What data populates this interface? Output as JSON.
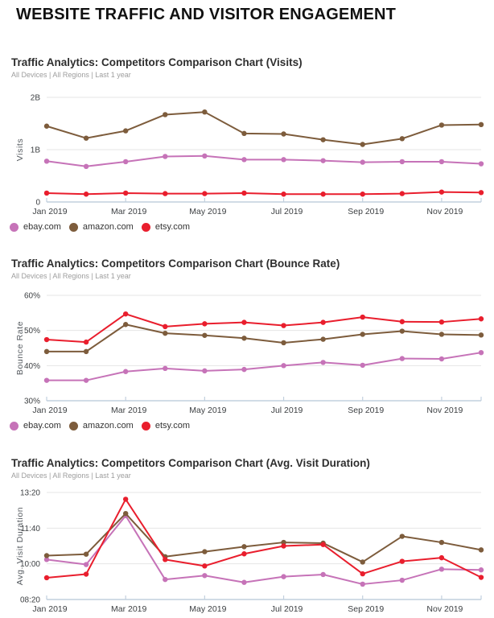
{
  "page_title": "WEBSITE TRAFFIC AND VISITOR ENGAGEMENT",
  "colors": {
    "ebay": "#C673B8",
    "amazon": "#7D5C3C",
    "etsy": "#E91E2D",
    "gridline": "#e4e4e4",
    "axis": "#c2d0de",
    "tick_label": "#3d4043",
    "axis_title": "#565b60"
  },
  "chart_data": [
    {
      "type": "line",
      "title": "Traffic Analytics: Competitors Comparison Chart (Visits)",
      "subtitle": "All Devices | All Regions | Last 1 year",
      "ylabel": "Visits",
      "ylim": [
        0,
        2
      ],
      "yticks": [
        {
          "value": 2,
          "label": "2B"
        },
        {
          "value": 1,
          "label": "1B"
        },
        {
          "value": 0,
          "label": "0"
        }
      ],
      "categories": [
        "Jan 2019",
        "Feb 2019",
        "Mar 2019",
        "Apr 2019",
        "May 2019",
        "Jun 2019",
        "Jul 2019",
        "Aug 2019",
        "Sep 2019",
        "Oct 2019",
        "Nov 2019",
        "Dec 2019"
      ],
      "xtick_indices": [
        0,
        2,
        4,
        6,
        8,
        10
      ],
      "xtick_labels": [
        "Jan 2019",
        "Mar 2019",
        "May 2019",
        "Jul 2019",
        "Sep 2019",
        "Nov 2019"
      ],
      "unit": "billions of visits",
      "grid": true,
      "legend_visible": true,
      "legend_position": "bottom-left",
      "series": [
        {
          "name": "ebay.com",
          "color": "#C673B8",
          "values": [
            0.78,
            0.68,
            0.77,
            0.87,
            0.88,
            0.81,
            0.81,
            0.79,
            0.76,
            0.77,
            0.77,
            0.73
          ]
        },
        {
          "name": "amazon.com",
          "color": "#7D5C3C",
          "values": [
            1.45,
            1.22,
            1.36,
            1.67,
            1.72,
            1.31,
            1.3,
            1.19,
            1.1,
            1.21,
            1.47,
            1.48
          ]
        },
        {
          "name": "etsy.com",
          "color": "#E91E2D",
          "values": [
            0.17,
            0.15,
            0.17,
            0.16,
            0.16,
            0.17,
            0.15,
            0.15,
            0.15,
            0.16,
            0.19,
            0.18
          ]
        }
      ]
    },
    {
      "type": "line",
      "title": "Traffic Analytics: Competitors Comparison Chart (Bounce Rate)",
      "subtitle": "All Devices | All Regions | Last 1 year",
      "ylabel": "Bounce Rate",
      "ylim": [
        30,
        60
      ],
      "yticks": [
        {
          "value": 60,
          "label": "60%"
        },
        {
          "value": 50,
          "label": "50%"
        },
        {
          "value": 40,
          "label": "40%"
        },
        {
          "value": 30,
          "label": "30%"
        }
      ],
      "categories": [
        "Jan 2019",
        "Feb 2019",
        "Mar 2019",
        "Apr 2019",
        "May 2019",
        "Jun 2019",
        "Jul 2019",
        "Aug 2019",
        "Sep 2019",
        "Oct 2019",
        "Nov 2019",
        "Dec 2019"
      ],
      "xtick_indices": [
        0,
        2,
        4,
        6,
        8,
        10
      ],
      "xtick_labels": [
        "Jan 2019",
        "Mar 2019",
        "May 2019",
        "Jul 2019",
        "Sep 2019",
        "Nov 2019"
      ],
      "unit": "percent",
      "grid": true,
      "legend_visible": true,
      "legend_position": "bottom-left",
      "series": [
        {
          "name": "ebay.com",
          "color": "#C673B8",
          "values": [
            35.8,
            35.8,
            38.3,
            39.2,
            38.5,
            38.9,
            40.0,
            40.9,
            40.1,
            42.0,
            41.9,
            43.7
          ]
        },
        {
          "name": "amazon.com",
          "color": "#7D5C3C",
          "values": [
            44.0,
            44.0,
            51.7,
            49.2,
            48.6,
            47.8,
            46.5,
            47.5,
            48.9,
            49.8,
            48.9,
            48.7
          ]
        },
        {
          "name": "etsy.com",
          "color": "#E91E2D",
          "values": [
            47.4,
            46.7,
            54.7,
            51.1,
            51.9,
            52.3,
            51.4,
            52.3,
            53.8,
            52.5,
            52.4,
            53.3
          ]
        }
      ]
    },
    {
      "type": "line",
      "title": "Traffic Analytics: Competitors Comparison Chart (Avg. Visit Duration)",
      "subtitle": "All Devices | All Regions | Last 1 year",
      "ylabel": "Avg. Visit Duration",
      "ylim": [
        500,
        800
      ],
      "yticks": [
        {
          "value": 800,
          "label": "13:20"
        },
        {
          "value": 700,
          "label": "11:40"
        },
        {
          "value": 600,
          "label": "10:00"
        },
        {
          "value": 500,
          "label": "08:20"
        }
      ],
      "categories": [
        "Jan 2019",
        "Feb 2019",
        "Mar 2019",
        "Apr 2019",
        "May 2019",
        "Jun 2019",
        "Jul 2019",
        "Aug 2019",
        "Sep 2019",
        "Oct 2019",
        "Nov 2019",
        "Dec 2019"
      ],
      "xtick_indices": [
        0,
        2,
        4,
        6,
        8,
        10
      ],
      "xtick_labels": [
        "Jan 2019",
        "Mar 2019",
        "May 2019",
        "Jul 2019",
        "Sep 2019",
        "Nov 2019"
      ],
      "unit": "seconds (ticks formatted mm:ss)",
      "grid": true,
      "legend_visible": false,
      "legend_position": "none",
      "series": [
        {
          "name": "ebay.com",
          "color": "#C673B8",
          "values": [
            612,
            598,
            735,
            556,
            567,
            548,
            564,
            570,
            543,
            554,
            585,
            583
          ]
        },
        {
          "name": "amazon.com",
          "color": "#7D5C3C",
          "values": [
            623,
            627,
            741,
            620,
            634,
            648,
            660,
            658,
            605,
            677,
            660,
            639
          ]
        },
        {
          "name": "etsy.com",
          "color": "#E91E2D",
          "values": [
            561,
            571,
            781,
            612,
            594,
            628,
            650,
            654,
            572,
            607,
            617,
            562
          ]
        }
      ]
    }
  ]
}
